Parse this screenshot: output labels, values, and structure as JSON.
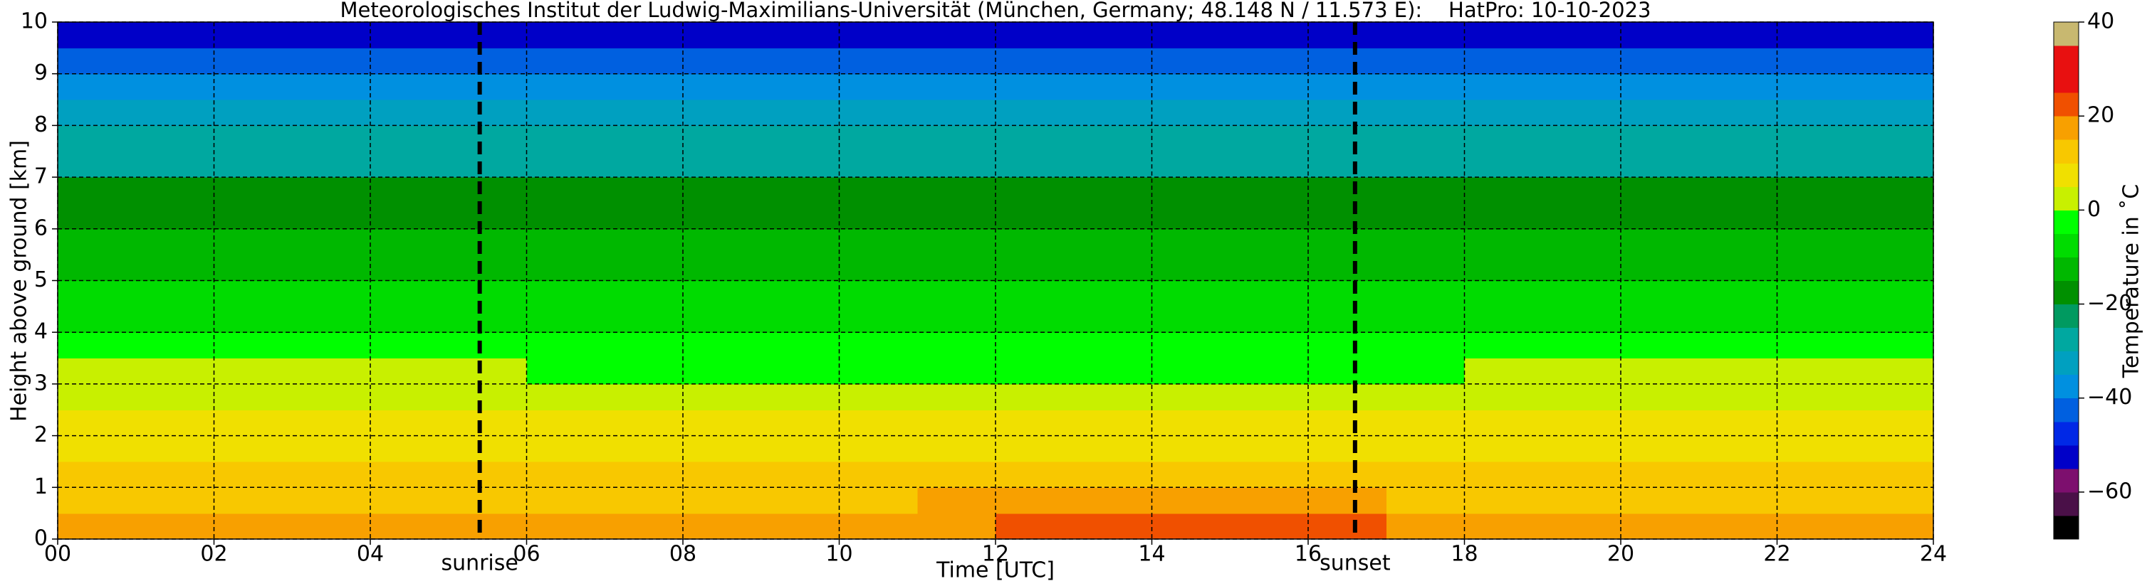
{
  "chart_data": {
    "type": "heatmap",
    "title": "Meteorologisches Institut der Ludwig-Maximilians-Universität (München, Germany; 48.148 N / 11.573 E):    HatPro: 10-10-2023",
    "x_label": "Time [UTC]",
    "y_label": "Height above ground [km]",
    "colorbar_label": "Temperature in ˚C",
    "x": [
      0.5,
      1.5,
      2.5,
      3.5,
      4.5,
      5.5,
      6.5,
      7.5,
      8.5,
      9.5,
      10.5,
      11.5,
      12.5,
      13.5,
      14.5,
      15.5,
      16.5,
      17.5,
      18.5,
      19.5,
      20.5,
      21.5,
      22.5,
      23.5
    ],
    "y": [
      0.25,
      0.75,
      1.25,
      1.75,
      2.25,
      2.75,
      3.25,
      3.75,
      4.25,
      4.75,
      5.25,
      5.75,
      6.25,
      6.75,
      7.25,
      7.75,
      8.25,
      8.75,
      9.25,
      9.75
    ],
    "values": [
      [
        16,
        16,
        16,
        16,
        16,
        16,
        16,
        16,
        16,
        16,
        17,
        19,
        21,
        22,
        23,
        22,
        21,
        18,
        17,
        16,
        16,
        16,
        16,
        16
      ],
      [
        13,
        13,
        13,
        13,
        13,
        13,
        13,
        13,
        13,
        13,
        14,
        15,
        16,
        16,
        16,
        16,
        15,
        14,
        13,
        13,
        13,
        13,
        13,
        13
      ],
      [
        11,
        11,
        11,
        11,
        11,
        11,
        11,
        11,
        11,
        11,
        11,
        11,
        11,
        11,
        11,
        11,
        11,
        11,
        11,
        11,
        11,
        11,
        11,
        11
      ],
      [
        9,
        9,
        9,
        9,
        9,
        9,
        9,
        9,
        9,
        9,
        9,
        9,
        9,
        9,
        9,
        9,
        9,
        9,
        9,
        9,
        9,
        9,
        9,
        9
      ],
      [
        7,
        7,
        7,
        7,
        7,
        7,
        7,
        7,
        7,
        7,
        7,
        7,
        7,
        7,
        7,
        7,
        7,
        7,
        7,
        7,
        7,
        7,
        7,
        7
      ],
      [
        3,
        3,
        3,
        3,
        3,
        3,
        3,
        3,
        3,
        3,
        3,
        3,
        3,
        3,
        3,
        3,
        3,
        3,
        3,
        3,
        3,
        3,
        3,
        3
      ],
      [
        1,
        1,
        1,
        1,
        1,
        0,
        -1,
        -1,
        -1,
        -1,
        -1,
        -1,
        -1,
        -1,
        -1,
        -1,
        -1,
        -1,
        1,
        1,
        1,
        1,
        1,
        1
      ],
      [
        -4,
        -4,
        -4,
        -4,
        -4,
        -4,
        -4,
        -4,
        -4,
        -4,
        -4,
        -4,
        -4,
        -4,
        -4,
        -4,
        -4,
        -4,
        -4,
        -4,
        -4,
        -4,
        -4,
        -4
      ],
      [
        -7,
        -7,
        -7,
        -7,
        -7,
        -7,
        -7,
        -7,
        -7,
        -7,
        -7,
        -7,
        -7,
        -7,
        -7,
        -7,
        -7,
        -7,
        -7,
        -7,
        -7,
        -7,
        -7,
        -7
      ],
      [
        -9,
        -9,
        -9,
        -9,
        -9,
        -9,
        -9,
        -9,
        -9,
        -9,
        -9,
        -9,
        -9,
        -9,
        -9,
        -9,
        -9,
        -9,
        -9,
        -9,
        -9,
        -9,
        -9,
        -9
      ],
      [
        -12,
        -12,
        -12,
        -12,
        -12,
        -12,
        -12,
        -12,
        -12,
        -12,
        -12,
        -12,
        -12,
        -12,
        -12,
        -12,
        -12,
        -12,
        -12,
        -12,
        -12,
        -12,
        -12,
        -12
      ],
      [
        -14,
        -14,
        -14,
        -14,
        -14,
        -14,
        -14,
        -14,
        -14,
        -14,
        -14,
        -14,
        -14,
        -14,
        -14,
        -14,
        -14,
        -14,
        -14,
        -14,
        -14,
        -14,
        -14,
        -14
      ],
      [
        -18,
        -18,
        -18,
        -18,
        -18,
        -18,
        -18,
        -18,
        -18,
        -18,
        -18,
        -18,
        -18,
        -18,
        -18,
        -18,
        -18,
        -18,
        -18,
        -18,
        -18,
        -18,
        -18,
        -18
      ],
      [
        -19,
        -19,
        -19,
        -19,
        -19,
        -19,
        -19,
        -19,
        -19,
        -19,
        -19,
        -19,
        -19,
        -19,
        -19,
        -19,
        -19,
        -19,
        -19,
        -19,
        -19,
        -19,
        -19,
        -19
      ],
      [
        -26,
        -26,
        -26,
        -26,
        -26,
        -26,
        -26,
        -26,
        -26,
        -26,
        -26,
        -26,
        -26,
        -26,
        -26,
        -26,
        -26,
        -26,
        -26,
        -26,
        -26,
        -26,
        -26,
        -26
      ],
      [
        -29,
        -29,
        -29,
        -29,
        -29,
        -29,
        -29,
        -29,
        -29,
        -29,
        -29,
        -29,
        -29,
        -29,
        -29,
        -29,
        -29,
        -29,
        -29,
        -29,
        -29,
        -29,
        -29,
        -29
      ],
      [
        -33,
        -33,
        -33,
        -33,
        -33,
        -33,
        -33,
        -33,
        -33,
        -33,
        -33,
        -33,
        -33,
        -33,
        -33,
        -33,
        -33,
        -33,
        -33,
        -33,
        -33,
        -33,
        -33,
        -33
      ],
      [
        -38,
        -38,
        -38,
        -38,
        -38,
        -38,
        -38,
        -38,
        -38,
        -38,
        -38,
        -38,
        -38,
        -38,
        -38,
        -38,
        -38,
        -38,
        -38,
        -38,
        -38,
        -38,
        -38,
        -38
      ],
      [
        -43,
        -43,
        -43,
        -43,
        -43,
        -43,
        -43,
        -43,
        -43,
        -43,
        -43,
        -43,
        -43,
        -43,
        -43,
        -43,
        -43,
        -43,
        -43,
        -43,
        -43,
        -43,
        -43,
        -43
      ],
      [
        -51,
        -51,
        -51,
        -51,
        -51,
        -51,
        -51,
        -51,
        -51,
        -51,
        -51,
        -51,
        -51,
        -51,
        -51,
        -51,
        -51,
        -51,
        -51,
        -51,
        -51,
        -51,
        -51,
        -51
      ]
    ],
    "xlim": [
      0,
      24
    ],
    "ylim": [
      0,
      10
    ],
    "xticks": [
      {
        "value": 0,
        "label": "00"
      },
      {
        "value": 2,
        "label": "02"
      },
      {
        "value": 4,
        "label": "04"
      },
      {
        "value": 6,
        "label": "06"
      },
      {
        "value": 8,
        "label": "08"
      },
      {
        "value": 10,
        "label": "10"
      },
      {
        "value": 12,
        "label": "12"
      },
      {
        "value": 14,
        "label": "14"
      },
      {
        "value": 16,
        "label": "16"
      },
      {
        "value": 18,
        "label": "18"
      },
      {
        "value": 20,
        "label": "20"
      },
      {
        "value": 22,
        "label": "22"
      },
      {
        "value": 24,
        "label": "24"
      }
    ],
    "yticks": [
      0,
      1,
      2,
      3,
      4,
      5,
      6,
      7,
      8,
      9,
      10
    ],
    "clim": [
      -70,
      40
    ],
    "cticks": [
      {
        "value": -60,
        "label": "−60"
      },
      {
        "value": -40,
        "label": "−40"
      },
      {
        "value": -20,
        "label": "−20"
      },
      0,
      20,
      40
    ],
    "colormap": [
      "#000000",
      "#4a1048",
      "#7d0f6e",
      "#0000c8",
      "#0028e6",
      "#0060e0",
      "#0090e0",
      "#00a0c0",
      "#00a8a0",
      "#009a60",
      "#009000",
      "#00b800",
      "#00dc00",
      "#00ff00",
      "#c8f000",
      "#f0e000",
      "#f8c800",
      "#f8a000",
      "#f05000",
      "#e81010",
      "#e81010",
      "#c8b870"
    ],
    "grid": true,
    "annotations": [
      {
        "x": 5.4,
        "label": "sunrise"
      },
      {
        "x": 16.6,
        "label": "sunset"
      }
    ]
  }
}
